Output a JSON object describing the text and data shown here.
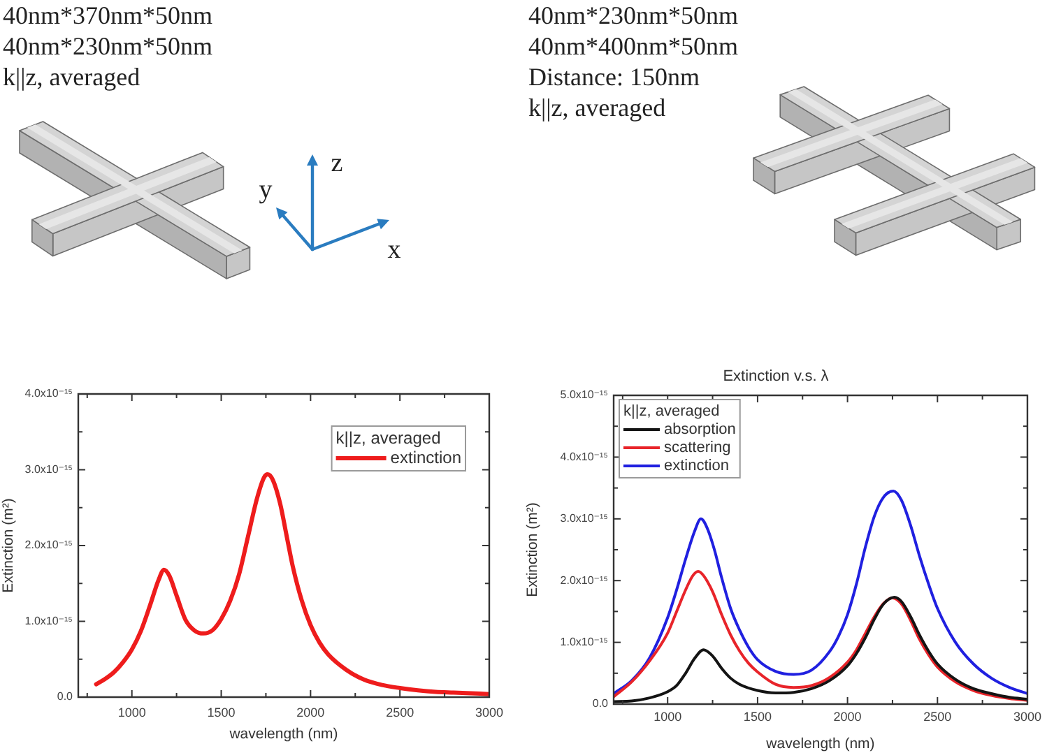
{
  "chart_data": [
    {
      "type": "line",
      "xlabel": "wavelength (nm)",
      "ylabel": "Extinction (m²)",
      "legend_title": "k||z, averaged",
      "legend": "top right",
      "annotations": [
        "40nm*370nm*50nm",
        "40nm*230nm*50nm",
        "k||z, averaged",
        "z",
        "y",
        "x"
      ],
      "xlim": [
        700,
        3000
      ],
      "xticks": [
        {
          "value": 750,
          "label": null
        },
        1000,
        {
          "value": 1250,
          "label": null
        },
        1500,
        {
          "value": 1750,
          "label": null
        },
        2000,
        {
          "value": 2250,
          "label": null
        },
        2500,
        {
          "value": 2750,
          "label": null
        },
        3000
      ],
      "ylim": [
        0,
        4e-15
      ],
      "yticks": [
        {
          "value": 0,
          "label": "0.0"
        },
        {
          "value": 5e-16,
          "label": null
        },
        {
          "value": 1e-15,
          "label": "1.0x10⁻¹⁵"
        },
        {
          "value": 1.5e-15,
          "label": null
        },
        {
          "value": 2e-15,
          "label": "2.0x10⁻¹⁵"
        },
        {
          "value": 2.5e-15,
          "label": null
        },
        {
          "value": 3e-15,
          "label": "3.0x10⁻¹⁵"
        },
        {
          "value": 3.5e-15,
          "label": null
        },
        {
          "value": 4e-15,
          "label": "4.0x10⁻¹⁵"
        }
      ],
      "series": [
        {
          "name": "extinction",
          "color": "#ee1c1c",
          "x": [
            800,
            850,
            900,
            950,
            1000,
            1050,
            1100,
            1150,
            1180,
            1210,
            1250,
            1300,
            1350,
            1400,
            1450,
            1500,
            1550,
            1600,
            1650,
            1700,
            1740,
            1760,
            1790,
            1830,
            1870,
            1900,
            1950,
            2000,
            2050,
            2100,
            2200,
            2300,
            2400,
            2500,
            2600,
            2700,
            2800,
            2900,
            3000
          ],
          "values": [
            1.7e-16,
            2.4e-16,
            3.3e-16,
            4.6e-16,
            6.3e-16,
            8.7e-16,
            1.2e-15,
            1.55e-15,
            1.68e-15,
            1.6e-15,
            1.34e-15,
            1.02e-15,
            8.8e-16,
            8.4e-16,
            8.8e-16,
            1.03e-15,
            1.27e-15,
            1.62e-15,
            2.12e-15,
            2.62e-15,
            2.9e-15,
            2.94e-15,
            2.86e-15,
            2.55e-15,
            2.08e-15,
            1.73e-15,
            1.28e-15,
            9.5e-16,
            7.2e-16,
            5.6e-16,
            3.6e-16,
            2.3e-16,
            1.6e-16,
            1.2e-16,
            9e-17,
            7e-17,
            6e-17,
            5e-17,
            4e-17
          ]
        }
      ]
    },
    {
      "type": "line",
      "title": "Extinction v.s. λ",
      "xlabel": "wavelength (nm)",
      "ylabel": "Extinction (m²)",
      "legend_title": "k||z, averaged",
      "legend": "top left",
      "annotations": [
        "40nm*230nm*50nm",
        "40nm*400nm*50nm",
        "Distance: 150nm",
        "k||z, averaged"
      ],
      "xlim": [
        700,
        3000
      ],
      "xticks": [
        {
          "value": 750,
          "label": null
        },
        1000,
        {
          "value": 1250,
          "label": null
        },
        1500,
        {
          "value": 1750,
          "label": null
        },
        2000,
        {
          "value": 2250,
          "label": null
        },
        2500,
        {
          "value": 2750,
          "label": null
        },
        3000
      ],
      "ylim": [
        0,
        5e-15
      ],
      "yticks": [
        {
          "value": 0,
          "label": "0.0"
        },
        {
          "value": 5e-16,
          "label": null
        },
        {
          "value": 1e-15,
          "label": "1.0x10⁻¹⁵"
        },
        {
          "value": 1.5e-15,
          "label": null
        },
        {
          "value": 2e-15,
          "label": "2.0x10⁻¹⁵"
        },
        {
          "value": 2.5e-15,
          "label": null
        },
        {
          "value": 3e-15,
          "label": "3.0x10⁻¹⁵"
        },
        {
          "value": 3.5e-15,
          "label": null
        },
        {
          "value": 4e-15,
          "label": "4.0x10⁻¹⁵"
        },
        {
          "value": 4.5e-15,
          "label": null
        },
        {
          "value": 5e-15,
          "label": "5.0x10⁻¹⁵"
        }
      ],
      "series": [
        {
          "name": "absorption",
          "color": "#141414",
          "x": [
            700,
            800,
            900,
            1000,
            1050,
            1100,
            1150,
            1200,
            1250,
            1300,
            1350,
            1400,
            1500,
            1600,
            1700,
            1800,
            1900,
            2000,
            2050,
            2100,
            2150,
            2200,
            2260,
            2300,
            2350,
            2400,
            2450,
            2500,
            2600,
            2700,
            2800,
            2900,
            3000
          ],
          "values": [
            4e-17,
            5e-17,
            1e-16,
            2e-16,
            3e-16,
            5e-16,
            7.4e-16,
            8.8e-16,
            7.8e-16,
            5.8e-16,
            4.2e-16,
            3.2e-16,
            2.2e-16,
            1.8e-16,
            1.9e-16,
            2.5e-16,
            3.8e-16,
            6.2e-16,
            8.2e-16,
            1.08e-15,
            1.38e-15,
            1.62e-15,
            1.73e-15,
            1.66e-15,
            1.42e-15,
            1.12e-15,
            8.6e-16,
            6.5e-16,
            4e-16,
            2.5e-16,
            1.7e-16,
            1.1e-16,
            8e-17
          ]
        },
        {
          "name": "scattering",
          "color": "#e8242a",
          "x": [
            700,
            800,
            900,
            1000,
            1050,
            1100,
            1140,
            1170,
            1200,
            1250,
            1300,
            1350,
            1400,
            1450,
            1500,
            1600,
            1700,
            1800,
            1900,
            2000,
            2050,
            2100,
            2150,
            2200,
            2250,
            2300,
            2350,
            2400,
            2450,
            2500,
            2600,
            2700,
            2800,
            2900,
            3000
          ],
          "values": [
            1.2e-16,
            3.6e-16,
            7e-16,
            1.15e-15,
            1.5e-15,
            1.85e-15,
            2.08e-15,
            2.15e-15,
            2.08e-15,
            1.82e-15,
            1.45e-15,
            1.12e-15,
            8.6e-16,
            6.6e-16,
            5.2e-16,
            3.2e-16,
            2.7e-16,
            3e-16,
            4.3e-16,
            6.8e-16,
            8.8e-16,
            1.15e-15,
            1.42e-15,
            1.63e-15,
            1.72e-15,
            1.62e-15,
            1.36e-15,
            1.05e-15,
            8e-16,
            6e-16,
            3.6e-16,
            2.2e-16,
            1.4e-16,
            9e-17,
            6e-17
          ]
        },
        {
          "name": "extinction",
          "color": "#2020e0",
          "x": [
            700,
            800,
            900,
            1000,
            1050,
            1100,
            1150,
            1185,
            1220,
            1260,
            1300,
            1350,
            1400,
            1450,
            1500,
            1600,
            1700,
            1800,
            1900,
            1950,
            2000,
            2050,
            2100,
            2150,
            2200,
            2255,
            2300,
            2350,
            2400,
            2450,
            2500,
            2600,
            2700,
            2800,
            2900,
            3000
          ],
          "values": [
            1.7e-16,
            3.8e-16,
            7.5e-16,
            1.4e-15,
            1.85e-15,
            2.35e-15,
            2.8e-15,
            3e-15,
            2.85e-15,
            2.5e-15,
            2.05e-15,
            1.55e-15,
            1.2e-15,
            9.2e-16,
            7.2e-16,
            5.3e-16,
            4.8e-16,
            5.5e-16,
            8.5e-16,
            1.1e-15,
            1.45e-15,
            1.95e-15,
            2.55e-15,
            3.05e-15,
            3.35e-15,
            3.45e-15,
            3.3e-15,
            2.9e-15,
            2.4e-15,
            1.95e-15,
            1.55e-15,
            1e-15,
            6.5e-16,
            4.2e-16,
            2.7e-16,
            1.7e-16
          ]
        }
      ]
    }
  ]
}
